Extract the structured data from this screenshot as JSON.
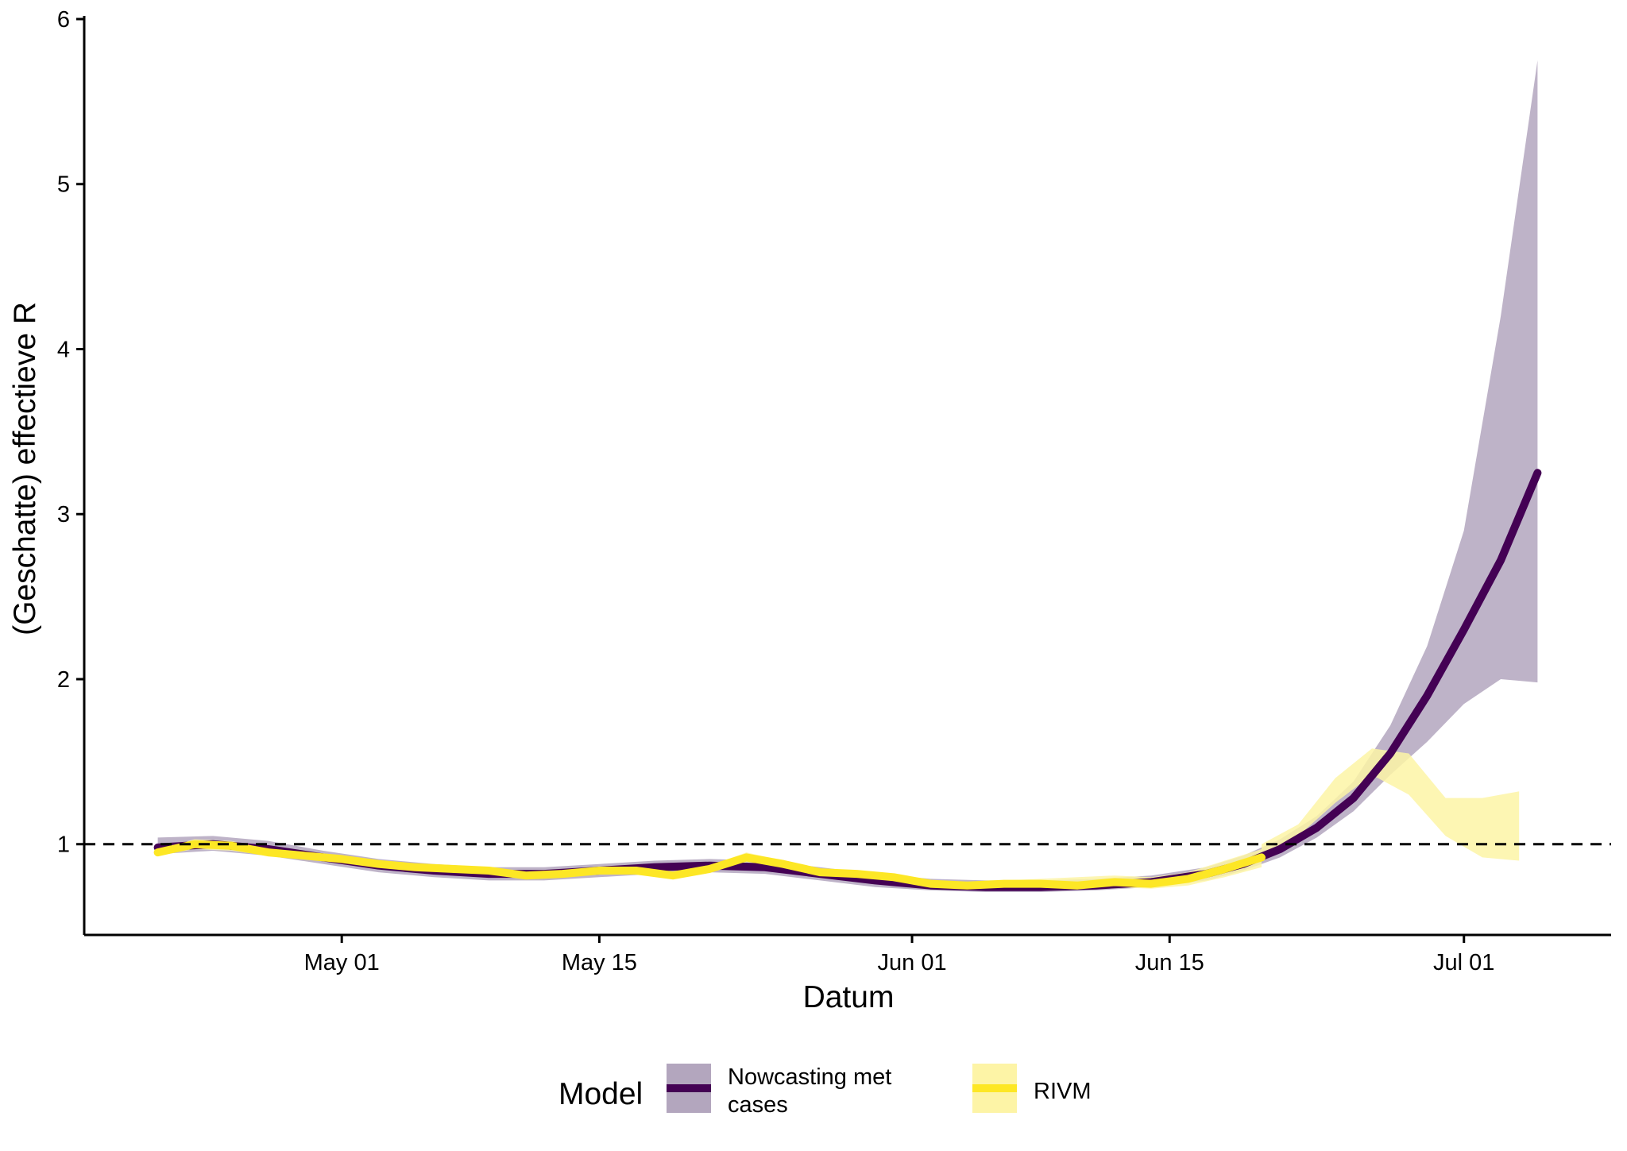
{
  "chart_data": {
    "type": "line",
    "title": "",
    "xlabel": "Datum",
    "ylabel": "(Geschatte) effectieve R",
    "x_ticks": [
      "May 01",
      "May 15",
      "Jun 01",
      "Jun 15",
      "Jul 01"
    ],
    "x_tick_dates": [
      "2021-05-01",
      "2021-05-15",
      "2021-06-01",
      "2021-06-15",
      "2021-07-01"
    ],
    "y_ticks": [
      1,
      2,
      3,
      4,
      5,
      6
    ],
    "xlim": [
      "2021-04-17",
      "2021-07-09"
    ],
    "ylim": [
      0.45,
      6
    ],
    "grid": false,
    "reference_line": {
      "y": 1,
      "style": "dashed",
      "color": "#000000"
    },
    "legend": {
      "title": "Model",
      "position": "bottom"
    },
    "series": [
      {
        "name": "Nowcasting met cases",
        "color": "#440154",
        "band_color": "#b3a6be",
        "x": [
          "2021-04-21",
          "2021-04-24",
          "2021-04-27",
          "2021-04-30",
          "2021-05-03",
          "2021-05-06",
          "2021-05-09",
          "2021-05-12",
          "2021-05-15",
          "2021-05-18",
          "2021-05-21",
          "2021-05-24",
          "2021-05-27",
          "2021-05-30",
          "2021-06-02",
          "2021-06-05",
          "2021-06-08",
          "2021-06-11",
          "2021-06-14",
          "2021-06-17",
          "2021-06-19",
          "2021-06-21",
          "2021-06-23",
          "2021-06-25",
          "2021-06-27",
          "2021-06-29",
          "2021-07-01",
          "2021-07-03",
          "2021-07-05"
        ],
        "y": [
          0.98,
          1.0,
          0.97,
          0.92,
          0.87,
          0.84,
          0.82,
          0.82,
          0.84,
          0.86,
          0.87,
          0.86,
          0.82,
          0.78,
          0.75,
          0.74,
          0.74,
          0.75,
          0.77,
          0.82,
          0.88,
          0.97,
          1.1,
          1.28,
          1.55,
          1.9,
          2.3,
          2.72,
          3.25
        ],
        "lower": [
          0.94,
          0.96,
          0.93,
          0.88,
          0.83,
          0.8,
          0.78,
          0.78,
          0.8,
          0.82,
          0.83,
          0.82,
          0.78,
          0.74,
          0.72,
          0.71,
          0.71,
          0.72,
          0.74,
          0.78,
          0.84,
          0.92,
          1.04,
          1.2,
          1.42,
          1.62,
          1.85,
          2.0,
          1.98
        ],
        "upper": [
          1.04,
          1.05,
          1.02,
          0.96,
          0.91,
          0.88,
          0.86,
          0.86,
          0.88,
          0.9,
          0.91,
          0.9,
          0.86,
          0.82,
          0.79,
          0.78,
          0.78,
          0.79,
          0.81,
          0.86,
          0.93,
          1.03,
          1.17,
          1.38,
          1.72,
          2.2,
          2.9,
          4.2,
          5.75
        ]
      },
      {
        "name": "RIVM",
        "color": "#fde725",
        "band_color": "#fdf4a6",
        "x": [
          "2021-04-21",
          "2021-04-23",
          "2021-04-25",
          "2021-04-27",
          "2021-04-29",
          "2021-05-01",
          "2021-05-03",
          "2021-05-05",
          "2021-05-07",
          "2021-05-09",
          "2021-05-11",
          "2021-05-13",
          "2021-05-15",
          "2021-05-17",
          "2021-05-19",
          "2021-05-21",
          "2021-05-23",
          "2021-05-25",
          "2021-05-27",
          "2021-05-29",
          "2021-05-31",
          "2021-06-02",
          "2021-06-04",
          "2021-06-06",
          "2021-06-08",
          "2021-06-10",
          "2021-06-12",
          "2021-06-14",
          "2021-06-16",
          "2021-06-18",
          "2021-06-20"
        ],
        "y": [
          0.95,
          1.0,
          0.99,
          0.95,
          0.93,
          0.91,
          0.88,
          0.86,
          0.85,
          0.84,
          0.81,
          0.82,
          0.84,
          0.84,
          0.81,
          0.85,
          0.92,
          0.88,
          0.83,
          0.82,
          0.8,
          0.76,
          0.75,
          0.76,
          0.76,
          0.75,
          0.77,
          0.76,
          0.79,
          0.85,
          0.92
        ],
        "lower": [
          0.93,
          0.97,
          0.96,
          0.93,
          0.91,
          0.89,
          0.86,
          0.84,
          0.83,
          0.82,
          0.79,
          0.8,
          0.82,
          0.82,
          0.79,
          0.83,
          0.89,
          0.86,
          0.81,
          0.8,
          0.78,
          0.74,
          0.73,
          0.74,
          0.74,
          0.73,
          0.74,
          0.73,
          0.75,
          0.8,
          0.86
        ],
        "upper": [
          0.97,
          1.03,
          1.02,
          0.97,
          0.95,
          0.93,
          0.9,
          0.88,
          0.87,
          0.86,
          0.83,
          0.84,
          0.86,
          0.86,
          0.83,
          0.87,
          0.95,
          0.9,
          0.85,
          0.84,
          0.82,
          0.78,
          0.77,
          0.78,
          0.79,
          0.8,
          0.81,
          0.8,
          0.83,
          0.9,
          0.97
        ]
      }
    ],
    "extra_bands": [
      {
        "series": "RIVM",
        "x": [
          "2021-06-20",
          "2021-06-22",
          "2021-06-24",
          "2021-06-26",
          "2021-06-28",
          "2021-06-30",
          "2021-07-02",
          "2021-07-04"
        ],
        "lower": [
          0.92,
          1.05,
          1.25,
          1.42,
          1.3,
          1.05,
          0.92,
          0.9
        ],
        "upper": [
          1.0,
          1.12,
          1.4,
          1.58,
          1.55,
          1.28,
          1.28,
          1.32
        ]
      }
    ]
  }
}
